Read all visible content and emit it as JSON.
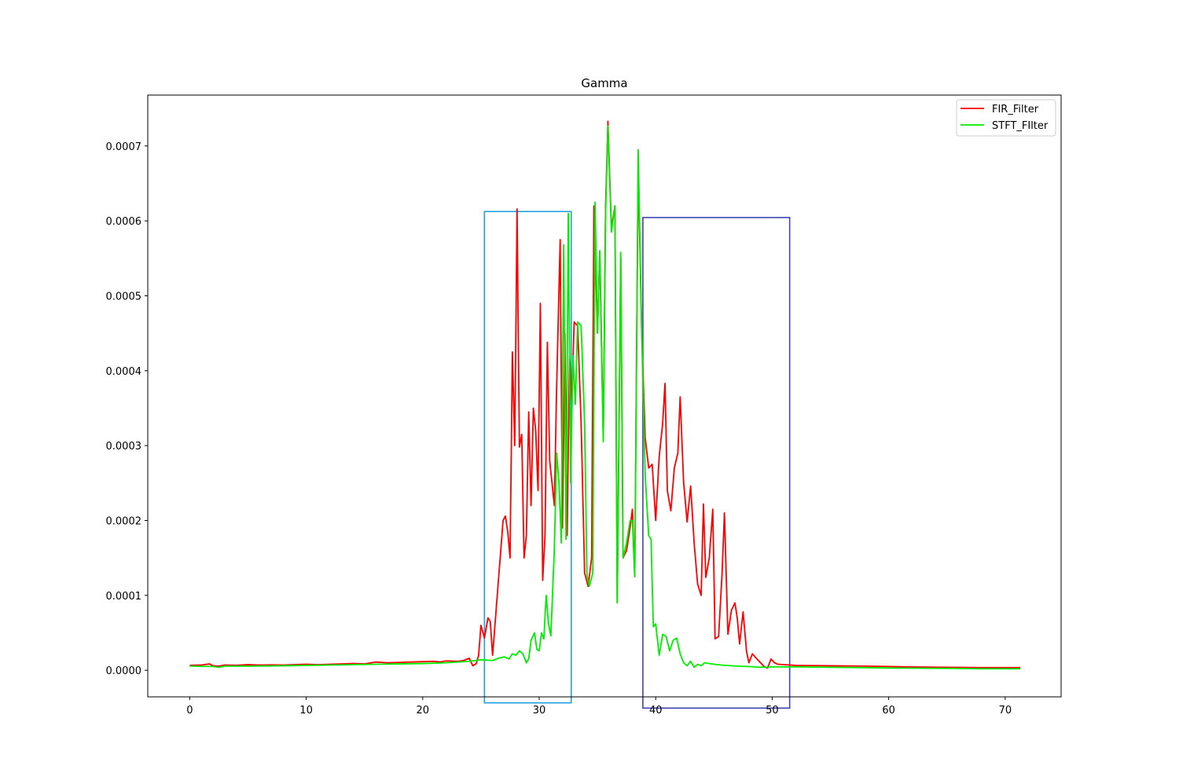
{
  "chart_data": {
    "type": "line",
    "title": "Gamma",
    "xlabel": "",
    "ylabel": "",
    "xlim": [
      -3.6,
      74.8
    ],
    "ylim": [
      -3.55e-05,
      0.000768
    ],
    "x_ticks": [
      0,
      10,
      20,
      30,
      40,
      50,
      60,
      70
    ],
    "x_tick_labels": [
      "0",
      "10",
      "20",
      "30",
      "40",
      "50",
      "60",
      "70"
    ],
    "y_ticks": [
      0,
      0.0001,
      0.0002,
      0.0003,
      0.0004,
      0.0005,
      0.0006,
      0.0007
    ],
    "y_tick_labels": [
      "0.0000",
      "0.0001",
      "0.0002",
      "0.0003",
      "0.0004",
      "0.0005",
      "0.0006",
      "0.0007"
    ],
    "grid": false,
    "legend_position": "top-right",
    "series": [
      {
        "name": "FIR_Filter",
        "color": "#ff0000",
        "points": [
          [
            0,
            6.5e-06
          ],
          [
            1,
            7e-06
          ],
          [
            1.7,
            8.5e-06
          ],
          [
            2,
            6e-06
          ],
          [
            2.5,
            5.5e-06
          ],
          [
            3,
            7e-06
          ],
          [
            4,
            6.5e-06
          ],
          [
            5,
            7.5e-06
          ],
          [
            6,
            7e-06
          ],
          [
            7,
            7.2e-06
          ],
          [
            8,
            7e-06
          ],
          [
            9,
            7.5e-06
          ],
          [
            10,
            8e-06
          ],
          [
            11,
            7.5e-06
          ],
          [
            12,
            8e-06
          ],
          [
            13,
            8.5e-06
          ],
          [
            14,
            9e-06
          ],
          [
            15,
            8.5e-06
          ],
          [
            16,
            1.1e-05
          ],
          [
            17,
            1e-05
          ],
          [
            18,
            1.05e-05
          ],
          [
            19,
            1.1e-05
          ],
          [
            20,
            1.15e-05
          ],
          [
            21,
            1.2e-05
          ],
          [
            21.5,
            1.1e-05
          ],
          [
            22,
            1.25e-05
          ],
          [
            23,
            1.2e-05
          ],
          [
            23.5,
            1.3e-05
          ],
          [
            24,
            1.6e-05
          ],
          [
            24.3,
            6e-06
          ],
          [
            24.6,
            9e-06
          ],
          [
            24.8,
            2e-05
          ],
          [
            25.0,
            6e-05
          ],
          [
            25.3,
            4.3e-05
          ],
          [
            25.6,
            7e-05
          ],
          [
            25.8,
            6.5e-05
          ],
          [
            26.0,
            2e-05
          ],
          [
            26.3,
            8e-05
          ],
          [
            26.6,
            0.00014
          ],
          [
            26.9,
            0.0002
          ],
          [
            27.1,
            0.000206
          ],
          [
            27.3,
            0.000185
          ],
          [
            27.5,
            0.00015
          ],
          [
            27.7,
            0.000425
          ],
          [
            27.9,
            0.0003
          ],
          [
            28.1,
            0.000616
          ],
          [
            28.3,
            0.000298
          ],
          [
            28.5,
            0.000315
          ],
          [
            28.7,
            0.00015
          ],
          [
            28.9,
            0.00018
          ],
          [
            29.1,
            0.000345
          ],
          [
            29.3,
            0.00022
          ],
          [
            29.5,
            0.00035
          ],
          [
            29.7,
            0.00032
          ],
          [
            29.9,
            0.00024
          ],
          [
            30.1,
            0.00049
          ],
          [
            30.3,
            0.00012
          ],
          [
            30.5,
            0.00018
          ],
          [
            30.7,
            0.000438
          ],
          [
            30.9,
            0.00028
          ],
          [
            31.1,
            0.00025
          ],
          [
            31.3,
            0.00022
          ],
          [
            31.5,
            0.00038
          ],
          [
            31.8,
            0.000575
          ],
          [
            32.0,
            0.00019
          ],
          [
            32.2,
            0.00045
          ],
          [
            32.4,
            0.00018
          ],
          [
            32.6,
            0.00042
          ],
          [
            32.8,
            0.00036
          ],
          [
            33.0,
            0.000465
          ],
          [
            33.3,
            0.00046
          ],
          [
            33.6,
            0.00033
          ],
          [
            33.9,
            0.00013
          ],
          [
            34.2,
            0.000112
          ],
          [
            34.5,
            0.00015
          ],
          [
            34.7,
            0.00062
          ],
          [
            35.0,
            0.00045
          ],
          [
            35.2,
            0.00056
          ],
          [
            35.5,
            0.00031
          ],
          [
            35.7,
            0.00062
          ],
          [
            35.9,
            0.000733
          ],
          [
            36.2,
            0.00059
          ],
          [
            36.5,
            0.00062
          ],
          [
            36.7,
            9e-05
          ],
          [
            37.0,
            0.00055
          ],
          [
            37.2,
            0.00015
          ],
          [
            37.5,
            0.00016
          ],
          [
            37.8,
            0.00019
          ],
          [
            38.0,
            0.000215
          ],
          [
            38.2,
            0.000125
          ],
          [
            38.5,
            0.000672
          ],
          [
            38.8,
            0.00045
          ],
          [
            39.1,
            0.00031
          ],
          [
            39.4,
            0.00027
          ],
          [
            39.7,
            0.000275
          ],
          [
            40.0,
            0.0002
          ],
          [
            40.3,
            0.000285
          ],
          [
            40.6,
            0.00033
          ],
          [
            40.8,
            0.000383
          ],
          [
            41.0,
            0.00024
          ],
          [
            41.3,
            0.000213
          ],
          [
            41.6,
            0.00027
          ],
          [
            41.9,
            0.00029
          ],
          [
            42.1,
            0.000365
          ],
          [
            42.4,
            0.00025
          ],
          [
            42.7,
            0.000198
          ],
          [
            43.0,
            0.000246
          ],
          [
            43.3,
            0.00017
          ],
          [
            43.6,
            0.000115
          ],
          [
            43.9,
            0.0001
          ],
          [
            44.1,
            0.000222
          ],
          [
            44.3,
            0.000124
          ],
          [
            44.6,
            0.00015
          ],
          [
            44.9,
            0.000215
          ],
          [
            45.1,
            4.2e-05
          ],
          [
            45.4,
            4.5e-05
          ],
          [
            45.7,
            0.00013
          ],
          [
            45.9,
            0.00021
          ],
          [
            46.2,
            4.8e-05
          ],
          [
            46.5,
            8e-05
          ],
          [
            46.8,
            9e-05
          ],
          [
            47.0,
            7e-05
          ],
          [
            47.2,
            3.5e-05
          ],
          [
            47.5,
            7.8e-05
          ],
          [
            47.8,
            2.5e-05
          ],
          [
            48.0,
            1e-05
          ],
          [
            48.3,
            2.2e-05
          ],
          [
            48.7,
            1.5e-05
          ],
          [
            49.0,
            1e-05
          ],
          [
            49.3,
            5e-06
          ],
          [
            49.6,
            3e-06
          ],
          [
            49.9,
            1.5e-05
          ],
          [
            50.2,
            1e-05
          ],
          [
            50.5,
            8e-06
          ],
          [
            51,
            7.5e-06
          ],
          [
            52,
            6.5e-06
          ],
          [
            55,
            6e-06
          ],
          [
            58,
            5.5e-06
          ],
          [
            60,
            5e-06
          ],
          [
            62,
            4.5e-06
          ],
          [
            65,
            4e-06
          ],
          [
            68,
            3.5e-06
          ],
          [
            71.3,
            3.5e-06
          ]
        ]
      },
      {
        "name": "STFT_FIlter",
        "color": "#00ee00",
        "points": [
          [
            0,
            5.5e-06
          ],
          [
            2,
            5e-06
          ],
          [
            2.5,
            4e-06
          ],
          [
            3,
            5.5e-06
          ],
          [
            5,
            5.5e-06
          ],
          [
            8,
            6e-06
          ],
          [
            10,
            6.5e-06
          ],
          [
            12,
            7e-06
          ],
          [
            14,
            7.5e-06
          ],
          [
            16,
            8e-06
          ],
          [
            18,
            8.5e-06
          ],
          [
            20,
            9e-06
          ],
          [
            22,
            1e-05
          ],
          [
            24,
            1.2e-05
          ],
          [
            25,
            1.4e-05
          ],
          [
            26,
            1.3e-05
          ],
          [
            26.5,
            1.6e-05
          ],
          [
            27,
            1.8e-05
          ],
          [
            27.4,
            1.5e-05
          ],
          [
            27.7,
            2.2e-05
          ],
          [
            28,
            2e-05
          ],
          [
            28.3,
            2.6e-05
          ],
          [
            28.6,
            2.2e-05
          ],
          [
            28.9,
            1e-05
          ],
          [
            29.1,
            1.5e-05
          ],
          [
            29.3,
            4e-05
          ],
          [
            29.6,
            5e-05
          ],
          [
            29.8,
            2.8e-05
          ],
          [
            30.0,
            2.6e-05
          ],
          [
            30.2,
            5e-05
          ],
          [
            30.4,
            4.2e-05
          ],
          [
            30.6,
            0.0001
          ],
          [
            30.8,
            6.2e-05
          ],
          [
            31.0,
            4.6e-05
          ],
          [
            31.3,
            0.000162
          ],
          [
            31.5,
            0.00029
          ],
          [
            31.7,
            0.00025
          ],
          [
            31.9,
            0.00017
          ],
          [
            32.1,
            0.000568
          ],
          [
            32.3,
            0.000175
          ],
          [
            32.5,
            0.00061
          ],
          [
            32.7,
            0.00025
          ],
          [
            32.9,
            0.00042
          ],
          [
            33.1,
            0.000355
          ],
          [
            33.3,
            0.000465
          ],
          [
            33.6,
            0.00046
          ],
          [
            33.9,
            0.00033
          ],
          [
            34.1,
            0.000128
          ],
          [
            34.3,
            0.000112
          ],
          [
            34.6,
            0.00013
          ],
          [
            34.8,
            0.000625
          ],
          [
            35.0,
            0.00045
          ],
          [
            35.2,
            0.00056
          ],
          [
            35.5,
            0.000305
          ],
          [
            35.7,
            0.00061
          ],
          [
            35.9,
            0.000727
          ],
          [
            36.2,
            0.000585
          ],
          [
            36.5,
            0.00062
          ],
          [
            36.7,
            9e-05
          ],
          [
            37.0,
            0.000558
          ],
          [
            37.2,
            0.00015
          ],
          [
            37.5,
            0.00017
          ],
          [
            37.8,
            0.0002
          ],
          [
            38.0,
            0.0002
          ],
          [
            38.2,
            0.000125
          ],
          [
            38.5,
            0.000695
          ],
          [
            38.8,
            0.00045
          ],
          [
            39.1,
            0.00026
          ],
          [
            39.4,
            0.00018
          ],
          [
            39.6,
            0.000175
          ],
          [
            39.8,
            5.8e-05
          ],
          [
            40.0,
            6.2e-05
          ],
          [
            40.3,
            2e-05
          ],
          [
            40.6,
            4.8e-05
          ],
          [
            40.9,
            4.5e-05
          ],
          [
            41.2,
            2.6e-05
          ],
          [
            41.5,
            4e-05
          ],
          [
            41.8,
            4.3e-05
          ],
          [
            42.1,
            2.2e-05
          ],
          [
            42.4,
            1e-05
          ],
          [
            42.7,
            6e-06
          ],
          [
            43.0,
            1.2e-05
          ],
          [
            43.3,
            4e-06
          ],
          [
            43.6,
            8e-06
          ],
          [
            43.9,
            6e-06
          ],
          [
            44.2,
            1e-05
          ],
          [
            45,
            8e-06
          ],
          [
            46,
            6.5e-06
          ],
          [
            47,
            5.5e-06
          ],
          [
            48,
            5e-06
          ],
          [
            49,
            4e-06
          ],
          [
            50,
            4.5e-06
          ],
          [
            52,
            4.5e-06
          ],
          [
            55,
            4e-06
          ],
          [
            58,
            3.5e-06
          ],
          [
            60,
            3e-06
          ],
          [
            65,
            2.5e-06
          ],
          [
            68,
            2e-06
          ],
          [
            71.3,
            2e-06
          ]
        ]
      }
    ],
    "highlight_boxes": [
      {
        "x0": 25.3,
        "x1": 32.75,
        "y0": -4.35e-05,
        "y1": 0.0006125,
        "color": "#1f9fdf"
      },
      {
        "x0": 38.9,
        "x1": 51.5,
        "y0": -5.05e-05,
        "y1": 0.0006045,
        "color": "#3b46b5"
      }
    ]
  }
}
